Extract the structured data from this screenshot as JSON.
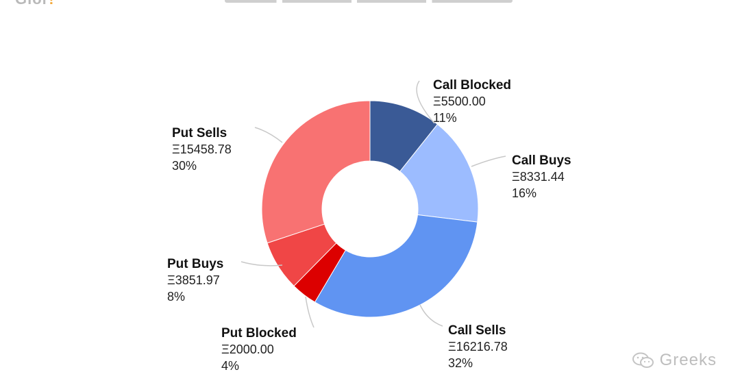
{
  "header": {
    "logo_text": "Glor",
    "logo_dot": "!"
  },
  "watermark": {
    "text": "Greeks",
    "icon": "wechat-icon"
  },
  "colors": {
    "call_blocked": "#3a5a96",
    "call_buys": "#9cbcff",
    "call_sells": "#6094f2",
    "put_blocked": "#dc0000",
    "put_buys": "#f04646",
    "put_sells": "#f87272"
  },
  "chart_data": {
    "type": "pie",
    "variant": "donut",
    "currency_symbol": "Ξ",
    "slices": [
      {
        "label": "Call Blocked",
        "value": 5500.0,
        "value_text": "Ξ5500.00",
        "pct_text": "11%",
        "color": "#3a5a96"
      },
      {
        "label": "Call Buys",
        "value": 8331.44,
        "value_text": "Ξ8331.44",
        "pct_text": "16%",
        "color": "#9cbcff"
      },
      {
        "label": "Call Sells",
        "value": 16216.78,
        "value_text": "Ξ16216.78",
        "pct_text": "32%",
        "color": "#6094f2"
      },
      {
        "label": "Put Blocked",
        "value": 2000.0,
        "value_text": "Ξ2000.00",
        "pct_text": "4%",
        "color": "#dc0000"
      },
      {
        "label": "Put Buys",
        "value": 3851.97,
        "value_text": "Ξ3851.97",
        "pct_text": "8%",
        "color": "#f04646"
      },
      {
        "label": "Put Sells",
        "value": 15458.78,
        "value_text": "Ξ15458.78",
        "pct_text": "30%",
        "color": "#f87272"
      }
    ]
  }
}
